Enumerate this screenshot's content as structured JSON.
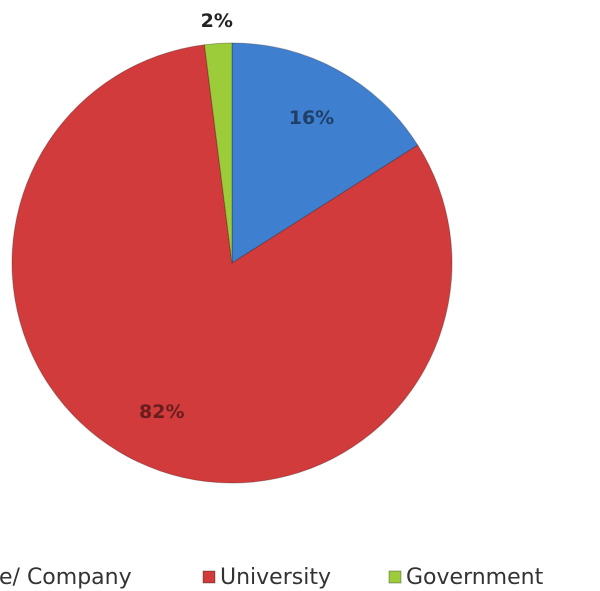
{
  "chart_data": {
    "type": "pie",
    "categories": [
      "e/ Company",
      "University",
      "Government"
    ],
    "values": [
      16,
      82,
      2
    ],
    "value_labels": [
      "16%",
      "82%",
      "2%"
    ],
    "colors": [
      "#3f7fd0",
      "#d23b3b",
      "#9ccc3a"
    ]
  }
}
